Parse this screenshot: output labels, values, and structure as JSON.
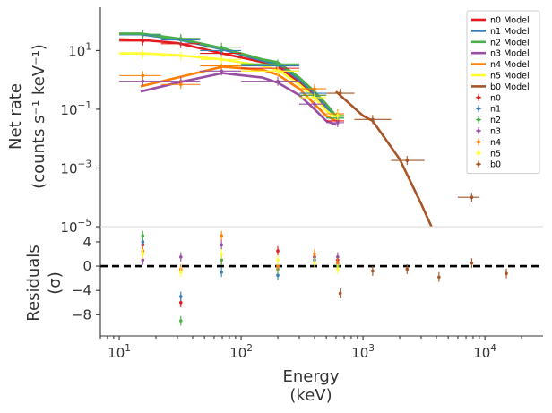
{
  "chart_data": {
    "type": "line",
    "xscale": "log",
    "xlabel": [
      "Energy",
      "(keV)"
    ],
    "xlim": [
      7,
      30000
    ],
    "xticks": [
      {
        "value": 10,
        "base": "10",
        "exp": "1"
      },
      {
        "value": 100,
        "base": "10",
        "exp": "2"
      },
      {
        "value": 1000,
        "base": "10",
        "exp": "3"
      },
      {
        "value": 10000,
        "base": "10",
        "exp": "4"
      }
    ],
    "legend_position": "upper-right",
    "panels": [
      {
        "id": "rate",
        "yscale": "log",
        "ylabel": [
          "Net rate",
          "(counts s⁻¹ keV⁻¹)"
        ],
        "ylim": [
          1e-05,
          300
        ],
        "yticks": [
          {
            "value": 10,
            "base": "10",
            "exp": "1"
          },
          {
            "value": 0.1,
            "base": "10",
            "exp": "−1"
          },
          {
            "value": 0.001,
            "base": "10",
            "exp": "−3"
          },
          {
            "value": 1e-05,
            "base": "10",
            "exp": "−5"
          }
        ]
      },
      {
        "id": "residuals",
        "yscale": "linear",
        "ylabel": [
          "Residuals",
          "(σ)"
        ],
        "ylim": [
          -11.5,
          6.5
        ],
        "yticks": [
          {
            "value": 4,
            "label": "4"
          },
          {
            "value": 0,
            "label": "0"
          },
          {
            "value": -4,
            "label": "−4"
          },
          {
            "value": -8,
            "label": "−8"
          }
        ],
        "reference_line": 0
      }
    ],
    "series": [
      {
        "name": "n0",
        "model_name": "n0 Model",
        "color": "#e41a1c",
        "model": [
          [
            10,
            24
          ],
          [
            15,
            23
          ],
          [
            30,
            18
          ],
          [
            70,
            8
          ],
          [
            150,
            4
          ],
          [
            200,
            3
          ],
          [
            300,
            0.8
          ],
          [
            400,
            0.3
          ],
          [
            500,
            0.1
          ],
          [
            600,
            0.05
          ]
        ],
        "data": [
          {
            "x": 15.6,
            "xlo": 10,
            "xhi": 22,
            "y": 21,
            "res": 3.5,
            "rerr": 0.8
          },
          {
            "x": 32,
            "xlo": 22,
            "xhi": 46,
            "y": 17,
            "res": -6,
            "rerr": 0.8
          },
          {
            "x": 69,
            "xlo": 46,
            "xhi": 100,
            "y": 8,
            "res": 1,
            "rerr": 0.8
          },
          {
            "x": 200,
            "xlo": 100,
            "xhi": 300,
            "y": 2.5,
            "res": 2.5,
            "rerr": 0.8
          },
          {
            "x": 400,
            "xlo": 300,
            "xhi": 500,
            "y": 0.3,
            "res": 1.5,
            "rerr": 0.8
          },
          {
            "x": 620,
            "xlo": 500,
            "xhi": 700,
            "y": 0.04,
            "res": 1,
            "rerr": 0.8
          }
        ]
      },
      {
        "name": "n1",
        "model_name": "n1 Model",
        "color": "#377eb8",
        "model": [
          [
            10,
            36
          ],
          [
            15,
            36
          ],
          [
            30,
            24
          ],
          [
            70,
            11
          ],
          [
            150,
            4.5
          ],
          [
            200,
            3.5
          ],
          [
            300,
            1
          ],
          [
            400,
            0.35
          ],
          [
            500,
            0.12
          ],
          [
            600,
            0.05
          ]
        ],
        "data": [
          {
            "x": 15.6,
            "xlo": 10,
            "xhi": 22,
            "y": 34,
            "res": 4,
            "rerr": 0.8
          },
          {
            "x": 32,
            "xlo": 22,
            "xhi": 46,
            "y": 23,
            "res": -5,
            "rerr": 0.8
          },
          {
            "x": 69,
            "xlo": 46,
            "xhi": 100,
            "y": 10,
            "res": -1,
            "rerr": 0.8
          },
          {
            "x": 200,
            "xlo": 100,
            "xhi": 300,
            "y": 3,
            "res": -1.5,
            "rerr": 0.8
          },
          {
            "x": 400,
            "xlo": 300,
            "xhi": 500,
            "y": 0.35,
            "res": 1,
            "rerr": 0.8
          },
          {
            "x": 620,
            "xlo": 500,
            "xhi": 700,
            "y": 0.05,
            "res": 0.5,
            "rerr": 0.8
          }
        ]
      },
      {
        "name": "n2",
        "model_name": "n2 Model",
        "color": "#4daf4a",
        "model": [
          [
            10,
            38
          ],
          [
            15,
            38
          ],
          [
            30,
            26
          ],
          [
            70,
            12
          ],
          [
            150,
            5
          ],
          [
            200,
            4
          ],
          [
            300,
            1.2
          ],
          [
            400,
            0.4
          ],
          [
            500,
            0.15
          ],
          [
            600,
            0.06
          ],
          [
            700,
            0.06
          ]
        ],
        "data": [
          {
            "x": 15.6,
            "xlo": 10,
            "xhi": 22,
            "y": 36,
            "res": 5,
            "rerr": 0.8
          },
          {
            "x": 32,
            "xlo": 22,
            "xhi": 46,
            "y": 26,
            "res": -9,
            "rerr": 0.8
          },
          {
            "x": 69,
            "xlo": 46,
            "xhi": 100,
            "y": 13,
            "res": 1,
            "rerr": 0.8
          },
          {
            "x": 200,
            "xlo": 100,
            "xhi": 300,
            "y": 3.5,
            "res": -0.5,
            "rerr": 0.8
          },
          {
            "x": 400,
            "xlo": 300,
            "xhi": 500,
            "y": 0.3,
            "res": 1.5,
            "rerr": 0.8
          },
          {
            "x": 620,
            "xlo": 500,
            "xhi": 700,
            "y": 0.05,
            "res": 0,
            "rerr": 0.8
          }
        ]
      },
      {
        "name": "n3",
        "model_name": "n3 Model",
        "color": "#984ea3",
        "model": [
          [
            15,
            0.4
          ],
          [
            30,
            0.8
          ],
          [
            70,
            1.7
          ],
          [
            150,
            1.2
          ],
          [
            200,
            0.8
          ],
          [
            300,
            0.3
          ],
          [
            400,
            0.1
          ],
          [
            500,
            0.04
          ],
          [
            600,
            0.03
          ]
        ],
        "data": [
          {
            "x": 15.6,
            "xlo": 10,
            "xhi": 22,
            "y": 0.9,
            "res": 1,
            "rerr": 0.8
          },
          {
            "x": 32,
            "xlo": 22,
            "xhi": 46,
            "y": 0.9,
            "res": 1.5,
            "rerr": 0.8
          },
          {
            "x": 69,
            "xlo": 46,
            "xhi": 100,
            "y": 2,
            "res": 3.5,
            "rerr": 0.8
          },
          {
            "x": 200,
            "xlo": 100,
            "xhi": 300,
            "y": 0.9,
            "res": 0,
            "rerr": 0.8
          },
          {
            "x": 400,
            "xlo": 300,
            "xhi": 500,
            "y": 0.15,
            "res": 1.5,
            "rerr": 0.8
          },
          {
            "x": 620,
            "xlo": 500,
            "xhi": 700,
            "y": 0.035,
            "res": 1.5,
            "rerr": 0.8
          }
        ]
      },
      {
        "name": "n4",
        "model_name": "n4 Model",
        "color": "#ff7f00",
        "model": [
          [
            15,
            0.6
          ],
          [
            30,
            1.2
          ],
          [
            70,
            2.8
          ],
          [
            150,
            2.2
          ],
          [
            200,
            1.5
          ],
          [
            300,
            0.5
          ],
          [
            400,
            0.15
          ],
          [
            500,
            0.06
          ],
          [
            600,
            0.04
          ]
        ],
        "data": [
          {
            "x": 15.6,
            "xlo": 10,
            "xhi": 22,
            "y": 1.4,
            "res": 2.5,
            "rerr": 0.8
          },
          {
            "x": 32,
            "xlo": 22,
            "xhi": 46,
            "y": 0.7,
            "res": -0.5,
            "rerr": 0.8
          },
          {
            "x": 69,
            "xlo": 46,
            "xhi": 100,
            "y": 3,
            "res": 5,
            "rerr": 0.8
          },
          {
            "x": 200,
            "xlo": 100,
            "xhi": 300,
            "y": 2,
            "res": 0,
            "rerr": 0.8
          },
          {
            "x": 400,
            "xlo": 300,
            "xhi": 500,
            "y": 0.5,
            "res": 2,
            "rerr": 0.8
          },
          {
            "x": 620,
            "xlo": 500,
            "xhi": 700,
            "y": 0.07,
            "res": 0.5,
            "rerr": 0.8
          }
        ]
      },
      {
        "name": "n5",
        "model_name": "n5 Model",
        "color": "#ffff33",
        "model": [
          [
            10,
            8
          ],
          [
            15,
            8
          ],
          [
            30,
            7
          ],
          [
            70,
            5
          ],
          [
            150,
            3
          ],
          [
            200,
            2.2
          ],
          [
            300,
            0.7
          ],
          [
            400,
            0.25
          ],
          [
            500,
            0.09
          ],
          [
            600,
            0.05
          ]
        ],
        "data": [
          {
            "x": 15.6,
            "xlo": 10,
            "xhi": 22,
            "y": 7.5,
            "res": 2,
            "rerr": 0.8
          },
          {
            "x": 32,
            "xlo": 22,
            "xhi": 46,
            "y": 6.5,
            "res": -1,
            "rerr": 0.8
          },
          {
            "x": 69,
            "xlo": 46,
            "xhi": 100,
            "y": 5,
            "res": 2,
            "rerr": 0.8
          },
          {
            "x": 200,
            "xlo": 100,
            "xhi": 300,
            "y": 2,
            "res": 1,
            "rerr": 0.8
          },
          {
            "x": 400,
            "xlo": 300,
            "xhi": 500,
            "y": 0.25,
            "res": 0.5,
            "rerr": 0.8
          },
          {
            "x": 620,
            "xlo": 500,
            "xhi": 700,
            "y": 0.06,
            "res": -0.5,
            "rerr": 0.8
          }
        ]
      },
      {
        "name": "b0",
        "model_name": "b0 Model",
        "color": "#a65628",
        "model": [
          [
            600,
            0.4
          ],
          [
            1000,
            0.06
          ],
          [
            1200,
            0.04
          ],
          [
            2000,
            0.002
          ],
          [
            3000,
            6e-05
          ],
          [
            4000,
            4.2e-06
          ]
        ],
        "data": [
          {
            "x": 650,
            "xlo": 500,
            "xhi": 850,
            "y": 0.35,
            "res": -4.5,
            "rerr": 0.8
          },
          {
            "x": 1200,
            "xlo": 850,
            "xhi": 1700,
            "y": 0.045,
            "res": -0.8,
            "rerr": 0.8
          },
          {
            "x": 2300,
            "xlo": 1700,
            "xhi": 3200,
            "y": 0.0018,
            "res": -0.5,
            "rerr": 0.8
          },
          {
            "x": 4200,
            "xlo": 3000,
            "xhi": 6000,
            "y": 4e-06,
            "res": -1.8,
            "rerr": 0.8
          },
          {
            "x": 7800,
            "xlo": 6000,
            "xhi": 9000,
            "y": 0.0001,
            "res": 0.5,
            "rerr": 0.8
          },
          {
            "x": 15000,
            "xlo": 11000,
            "xhi": 20000,
            "y": 4e-06,
            "res": -1.2,
            "rerr": 0.8
          }
        ]
      }
    ]
  }
}
